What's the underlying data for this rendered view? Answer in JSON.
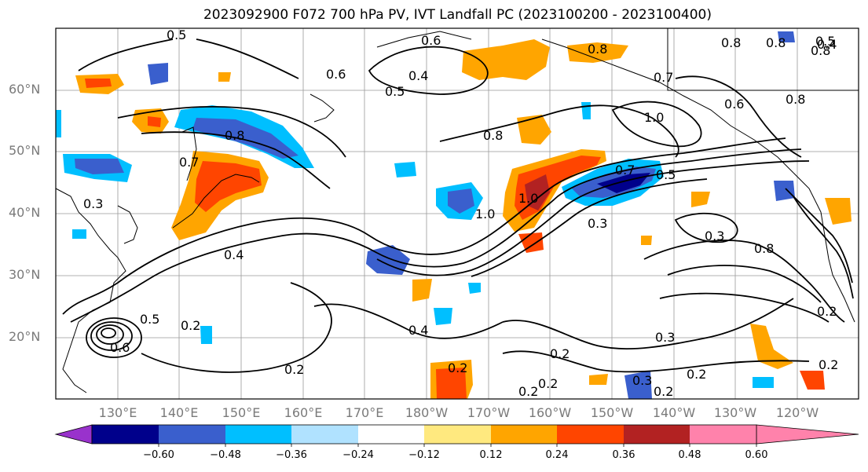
{
  "title": "2023092900 F072 700 hPa PV, IVT Landfall PC (2023100200 - 2023100400)",
  "lat_labels": [
    "60°N",
    "50°N",
    "40°N",
    "30°N",
    "20°N"
  ],
  "lon_labels": [
    "130°E",
    "140°E",
    "150°E",
    "160°E",
    "170°E",
    "180°W",
    "170°W",
    "160°W",
    "150°W",
    "140°W",
    "130°W",
    "120°W"
  ],
  "colorbar": {
    "ticks": [
      "−0.60",
      "−0.48",
      "−0.36",
      "−0.24",
      "−0.12",
      "0.12",
      "0.24",
      "0.36",
      "0.48",
      "0.60"
    ],
    "colors": [
      "#9932cc",
      "#00008b",
      "#3a5fcd",
      "#00bfff",
      "#b0e2ff",
      "#ffffff",
      "#ffe97f",
      "#ffa500",
      "#ff4500",
      "#b22222",
      "#ff82ab"
    ]
  },
  "contour_labels": [
    "0.5",
    "0.6",
    "0.7",
    "0.8",
    "0.4",
    "0.5",
    "0.6",
    "0.8",
    "0.8",
    "0.7",
    "0.8",
    "1.0",
    "0.8",
    "0.6",
    "0.8",
    "0.8",
    "0.5",
    "0.4",
    "0.3",
    "0.7",
    "1.0",
    "1.0",
    "0.5",
    "0.3",
    "0.3",
    "0.8",
    "0.4",
    "0.2",
    "0.5",
    "0.6",
    "0.2",
    "0.4",
    "0.2",
    "0.2",
    "0.3",
    "0.2",
    "0.2",
    "0.2",
    "0.2",
    "0.3",
    "0.2",
    "0.2"
  ]
}
